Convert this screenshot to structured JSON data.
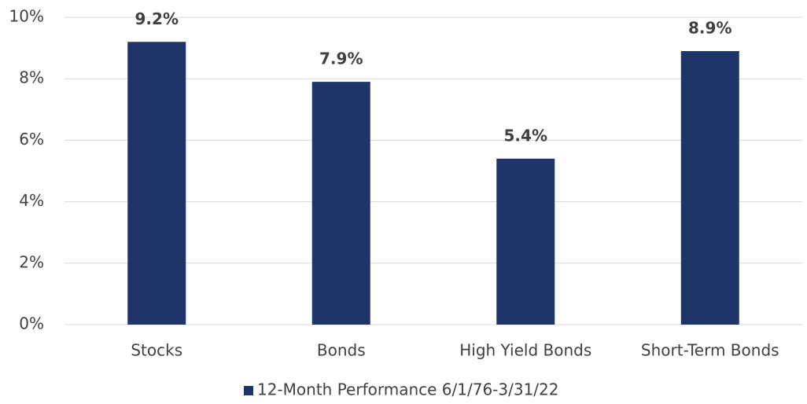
{
  "chart_data": {
    "type": "bar",
    "categories": [
      "Stocks",
      "Bonds",
      "High Yield Bonds",
      "Short-Term Bonds"
    ],
    "series": [
      {
        "name": "12-Month Performance 6/1/76-3/31/22",
        "color": "#1f3468",
        "values": [
          9.2,
          7.9,
          5.4,
          8.9
        ],
        "value_labels": [
          "9.2%",
          "7.9%",
          "5.4%",
          "8.9%"
        ]
      }
    ],
    "ylim": [
      0,
      10
    ],
    "yticks": [
      {
        "value": 0,
        "label": "0%"
      },
      {
        "value": 2,
        "label": "2%"
      },
      {
        "value": 4,
        "label": "4%"
      },
      {
        "value": 6,
        "label": "6%"
      },
      {
        "value": 8,
        "label": "8%"
      },
      {
        "value": 10,
        "label": "10%"
      }
    ],
    "grid": true,
    "legend": "bottom"
  }
}
